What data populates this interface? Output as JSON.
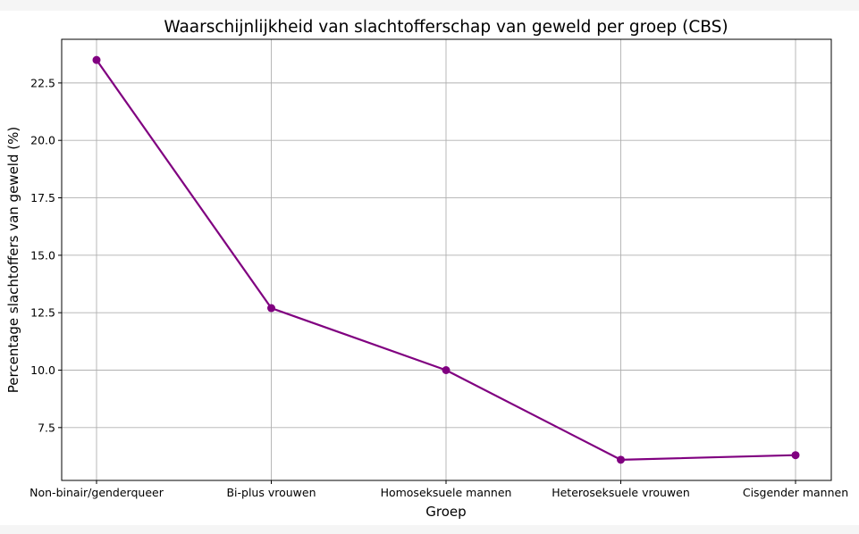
{
  "chart_data": {
    "type": "line",
    "title": "Waarschijnlijkheid van slachtofferschap van geweld per groep (CBS)",
    "xlabel": "Groep",
    "ylabel": "Percentage slachtoffers van geweld (%)",
    "categories": [
      "Non-binair/genderqueer",
      "Bi-plus vrouwen",
      "Homoseksuele mannen",
      "Heteroseksuele vrouwen",
      "Cisgender mannen"
    ],
    "values": [
      23.5,
      12.7,
      10.0,
      6.1,
      6.3
    ],
    "yticks": [
      "7.5",
      "10.0",
      "12.5",
      "15.0",
      "17.5",
      "20.0",
      "22.5"
    ],
    "ylim": [
      5.2,
      24.4
    ],
    "grid": true,
    "color": "#800080"
  }
}
